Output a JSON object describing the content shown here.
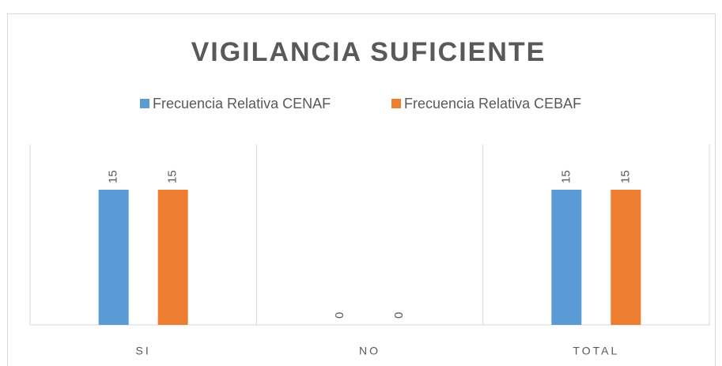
{
  "chart_data": {
    "type": "bar",
    "title": "VIGILANCIA SUFICIENTE",
    "categories": [
      "SI",
      "NO",
      "TOTAL"
    ],
    "series": [
      {
        "name": "Frecuencia Relativa CENAF",
        "color": "#5b9bd5",
        "values": [
          15,
          0,
          15
        ]
      },
      {
        "name": "Frecuencia Relativa CEBAF",
        "color": "#ed7d31",
        "values": [
          15,
          0,
          15
        ]
      }
    ],
    "ylim": [
      0,
      20
    ],
    "legend": "top",
    "data_labels": true
  }
}
